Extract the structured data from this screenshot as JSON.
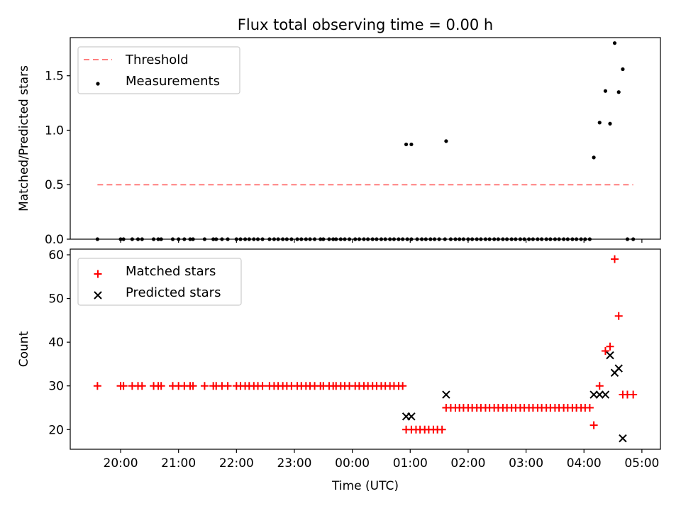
{
  "chart_data": [
    {
      "type": "scatter",
      "title": "Flux total observing time = 0.00 h",
      "xlabel": "",
      "ylabel": "Matched/Predicted stars",
      "xlim": [
        19.13,
        29.32
      ],
      "ylim": [
        0,
        1.85
      ],
      "yticks": [
        0.0,
        0.5,
        1.0,
        1.5
      ],
      "ytick_labels": [
        "0.0",
        "0.5",
        "1.0",
        "1.5"
      ],
      "legend": {
        "position": "top-left",
        "entries": [
          {
            "label": "Threshold",
            "color": "#ff7f7f",
            "style": "dashed-line"
          },
          {
            "label": "Measurements",
            "color": "#000000",
            "style": "dot"
          }
        ]
      },
      "series": [
        {
          "name": "Threshold",
          "kind": "line",
          "color": "#ff7f7f",
          "x": [
            19.6,
            28.85
          ],
          "y": [
            0.5,
            0.5
          ]
        },
        {
          "name": "Measurements",
          "kind": "scatter",
          "color": "#000000",
          "x": [
            19.6,
            20.0,
            20.05,
            20.2,
            20.3,
            20.37,
            20.57,
            20.65,
            20.7,
            20.9,
            21.0,
            21.1,
            21.2,
            21.25,
            21.45,
            21.6,
            21.65,
            21.75,
            21.85,
            22.0,
            22.07,
            22.15,
            22.22,
            22.3,
            22.37,
            22.45,
            22.57,
            22.65,
            22.72,
            22.8,
            22.87,
            22.95,
            23.05,
            23.12,
            23.2,
            23.27,
            23.35,
            23.45,
            23.5,
            23.6,
            23.67,
            23.72,
            23.8,
            23.87,
            23.95,
            24.05,
            24.12,
            24.2,
            24.27,
            24.35,
            24.42,
            24.5,
            24.57,
            24.65,
            24.72,
            24.8,
            24.87,
            24.95,
            25.02,
            25.12,
            25.2,
            25.27,
            25.35,
            25.42,
            25.5,
            25.6,
            25.7,
            25.78,
            25.85,
            25.92,
            26.0,
            26.07,
            26.15,
            26.22,
            26.3,
            26.37,
            26.45,
            26.52,
            26.6,
            26.67,
            26.75,
            26.82,
            26.9,
            26.97,
            27.05,
            27.12,
            27.2,
            27.27,
            27.35,
            27.42,
            27.5,
            27.57,
            27.65,
            27.72,
            27.8,
            27.87,
            27.95,
            28.02,
            28.1,
            24.93,
            25.02,
            25.62,
            28.17,
            28.27,
            28.37,
            28.45,
            28.53,
            28.6,
            28.67,
            28.75,
            28.85
          ],
          "y": [
            0,
            0,
            0,
            0,
            0,
            0,
            0,
            0,
            0,
            0,
            0,
            0,
            0,
            0,
            0,
            0,
            0,
            0,
            0,
            0,
            0,
            0,
            0,
            0,
            0,
            0,
            0,
            0,
            0,
            0,
            0,
            0,
            0,
            0,
            0,
            0,
            0,
            0,
            0,
            0,
            0,
            0,
            0,
            0,
            0,
            0,
            0,
            0,
            0,
            0,
            0,
            0,
            0,
            0,
            0,
            0,
            0,
            0,
            0,
            0,
            0,
            0,
            0,
            0,
            0,
            0,
            0,
            0,
            0,
            0,
            0,
            0,
            0,
            0,
            0,
            0,
            0,
            0,
            0,
            0,
            0,
            0,
            0,
            0,
            0,
            0,
            0,
            0,
            0,
            0,
            0,
            0,
            0,
            0,
            0,
            0,
            0,
            0,
            0,
            0.87,
            0.87,
            0.9,
            0.75,
            1.07,
            1.36,
            1.06,
            1.8,
            1.35,
            1.56,
            0,
            0
          ]
        }
      ]
    },
    {
      "type": "scatter",
      "title": "",
      "xlabel": "Time (UTC)",
      "ylabel": "Count",
      "xlim": [
        19.13,
        29.32
      ],
      "ylim": [
        15.5,
        61.3
      ],
      "yticks": [
        20,
        30,
        40,
        50,
        60
      ],
      "ytick_labels": [
        "20",
        "30",
        "40",
        "50",
        "60"
      ],
      "xticks": [
        20,
        21,
        22,
        23,
        24,
        25,
        26,
        27,
        28,
        29
      ],
      "xtick_labels": [
        "20:00",
        "21:00",
        "22:00",
        "23:00",
        "00:00",
        "01:00",
        "02:00",
        "03:00",
        "04:00",
        "05:00"
      ],
      "legend": {
        "position": "top-left",
        "entries": [
          {
            "label": "Matched stars",
            "color": "#ff0000",
            "style": "plus"
          },
          {
            "label": "Predicted stars",
            "color": "#000000",
            "style": "x"
          }
        ]
      },
      "series": [
        {
          "name": "Matched stars",
          "kind": "plus",
          "color": "#ff0000",
          "x": [
            19.6,
            20.0,
            20.05,
            20.2,
            20.3,
            20.37,
            20.57,
            20.65,
            20.7,
            20.9,
            21.0,
            21.1,
            21.2,
            21.25,
            21.45,
            21.6,
            21.65,
            21.75,
            21.85,
            22.0,
            22.07,
            22.15,
            22.22,
            22.3,
            22.37,
            22.45,
            22.57,
            22.65,
            22.72,
            22.8,
            22.87,
            22.95,
            23.05,
            23.12,
            23.2,
            23.27,
            23.35,
            23.45,
            23.5,
            23.6,
            23.67,
            23.72,
            23.8,
            23.87,
            23.95,
            24.05,
            24.12,
            24.2,
            24.27,
            24.35,
            24.42,
            24.5,
            24.57,
            24.65,
            24.72,
            24.8,
            24.87,
            24.93,
            25.02,
            25.1,
            25.17,
            25.25,
            25.32,
            25.4,
            25.47,
            25.55,
            25.62,
            25.7,
            25.78,
            25.85,
            25.92,
            26.0,
            26.07,
            26.15,
            26.22,
            26.3,
            26.37,
            26.45,
            26.52,
            26.6,
            26.67,
            26.75,
            26.82,
            26.9,
            26.97,
            27.05,
            27.12,
            27.2,
            27.27,
            27.35,
            27.42,
            27.5,
            27.57,
            27.65,
            27.72,
            27.8,
            27.87,
            27.95,
            28.02,
            28.1,
            28.17,
            28.27,
            28.37,
            28.45,
            28.53,
            28.6,
            28.67,
            28.75,
            28.85
          ],
          "y": [
            30,
            30,
            30,
            30,
            30,
            30,
            30,
            30,
            30,
            30,
            30,
            30,
            30,
            30,
            30,
            30,
            30,
            30,
            30,
            30,
            30,
            30,
            30,
            30,
            30,
            30,
            30,
            30,
            30,
            30,
            30,
            30,
            30,
            30,
            30,
            30,
            30,
            30,
            30,
            30,
            30,
            30,
            30,
            30,
            30,
            30,
            30,
            30,
            30,
            30,
            30,
            30,
            30,
            30,
            30,
            30,
            30,
            20,
            20,
            20,
            20,
            20,
            20,
            20,
            20,
            20,
            25,
            25,
            25,
            25,
            25,
            25,
            25,
            25,
            25,
            25,
            25,
            25,
            25,
            25,
            25,
            25,
            25,
            25,
            25,
            25,
            25,
            25,
            25,
            25,
            25,
            25,
            25,
            25,
            25,
            25,
            25,
            25,
            25,
            25,
            21,
            30,
            38,
            39,
            59,
            46,
            28,
            28,
            28
          ]
        },
        {
          "name": "Predicted stars",
          "kind": "x",
          "color": "#000000",
          "x": [
            24.93,
            25.02,
            25.62,
            28.17,
            28.27,
            28.37,
            28.45,
            28.53,
            28.6,
            28.67
          ],
          "y": [
            23,
            23,
            28,
            28,
            28,
            28,
            37,
            33,
            34,
            18
          ]
        }
      ]
    }
  ]
}
